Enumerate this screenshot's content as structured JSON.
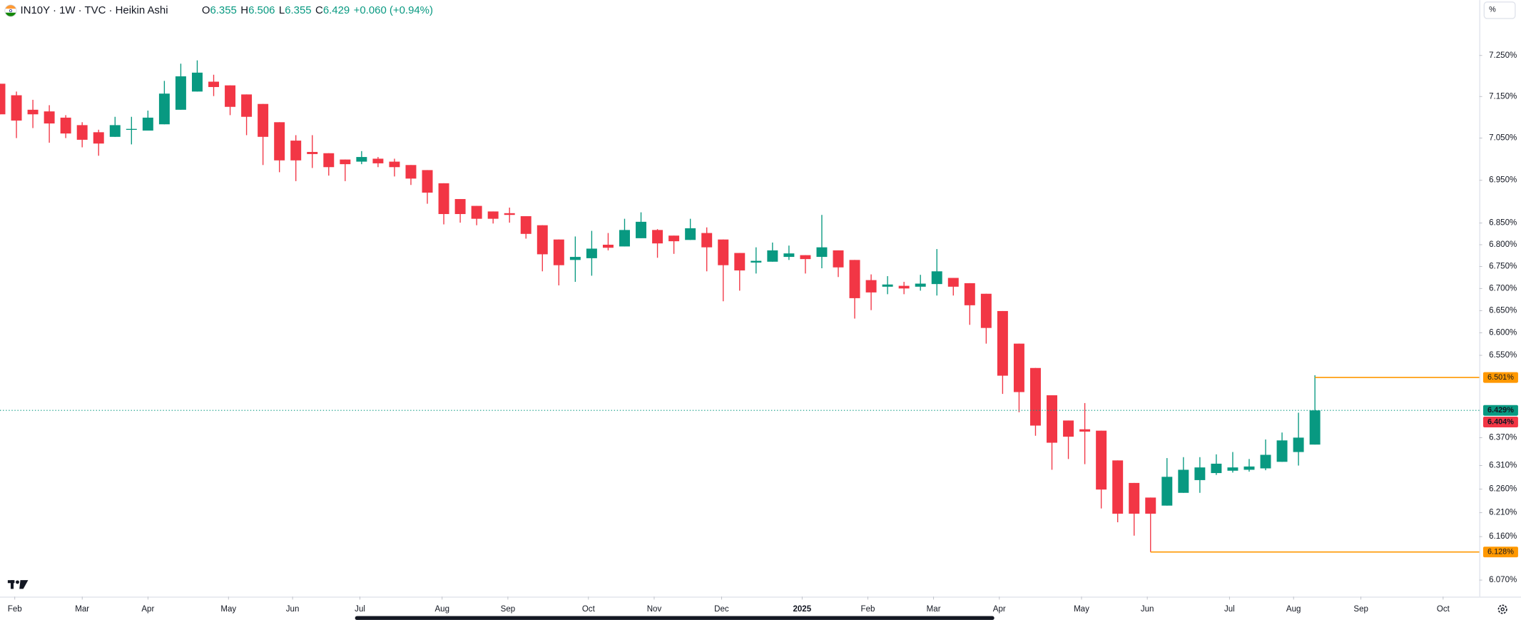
{
  "chart_data": {
    "type": "candlestick",
    "title": "IN10Y · 1W · TVC · Heikin Ashi",
    "legend_values": [
      {
        "label": "O",
        "value": "6.355"
      },
      {
        "label": "H",
        "value": "6.506"
      },
      {
        "label": "L",
        "value": "6.355"
      },
      {
        "label": "C",
        "value": "6.429"
      }
    ],
    "change": "+0.060 (+0.94%)",
    "scale_button": "%",
    "up_color": "#089981",
    "down_color": "#f23645",
    "log_scale": true,
    "open": [
      7.181,
      7.153,
      7.118,
      7.114,
      7.099,
      7.081,
      7.064,
      7.053,
      7.07,
      7.068,
      7.083,
      7.118,
      7.162,
      7.186,
      7.177,
      7.155,
      7.132,
      7.088,
      7.044,
      7.017,
      7.014,
      6.999,
      6.994,
      7.001,
      6.994,
      6.986,
      6.974,
      6.943,
      6.906,
      6.89,
      6.877,
      6.873,
      6.866,
      6.845,
      6.812,
      6.765,
      6.769,
      6.8,
      6.796,
      6.815,
      6.834,
      6.821,
      6.811,
      6.827,
      6.812,
      6.781,
      6.759,
      6.761,
      6.772,
      6.776,
      6.772,
      6.787,
      6.765,
      6.719,
      6.704,
      6.706,
      6.704,
      6.71,
      6.724,
      6.712,
      6.688,
      6.649,
      6.576,
      6.522,
      6.462,
      6.407,
      6.388,
      6.385,
      6.321,
      6.273,
      6.242,
      6.225,
      6.252,
      6.279,
      6.294,
      6.299,
      6.301,
      6.304,
      6.318,
      6.339,
      6.355
    ],
    "high": [
      7.181,
      7.162,
      7.142,
      7.129,
      7.105,
      7.088,
      7.07,
      7.101,
      7.101,
      7.116,
      7.188,
      7.23,
      7.238,
      7.203,
      7.177,
      7.155,
      7.132,
      7.088,
      7.057,
      7.057,
      7.014,
      6.999,
      7.019,
      7.005,
      7.001,
      6.986,
      6.974,
      6.943,
      6.906,
      6.89,
      6.877,
      6.886,
      6.866,
      6.845,
      6.812,
      6.819,
      6.832,
      6.827,
      6.86,
      6.875,
      6.836,
      6.821,
      6.86,
      6.84,
      6.812,
      6.781,
      6.794,
      6.805,
      6.798,
      6.776,
      6.869,
      6.787,
      6.765,
      6.732,
      6.728,
      6.715,
      6.731,
      6.79,
      6.724,
      6.712,
      6.688,
      6.649,
      6.576,
      6.522,
      6.462,
      6.407,
      6.445,
      6.385,
      6.321,
      6.273,
      6.242,
      6.326,
      6.328,
      6.328,
      6.334,
      6.339,
      6.324,
      6.366,
      6.381,
      6.424,
      6.506
    ],
    "low": [
      7.107,
      7.05,
      7.074,
      7.039,
      7.05,
      7.028,
      7.008,
      7.053,
      7.035,
      7.068,
      7.083,
      7.118,
      7.162,
      7.151,
      7.105,
      7.057,
      6.986,
      6.969,
      6.948,
      6.979,
      6.961,
      6.948,
      6.988,
      6.981,
      6.959,
      6.939,
      6.895,
      6.847,
      6.851,
      6.845,
      6.849,
      6.851,
      6.814,
      6.739,
      6.707,
      6.715,
      6.729,
      6.787,
      6.796,
      6.815,
      6.77,
      6.779,
      6.811,
      6.739,
      6.671,
      6.695,
      6.734,
      6.761,
      6.765,
      6.734,
      6.746,
      6.726,
      6.632,
      6.651,
      6.687,
      6.687,
      6.695,
      6.684,
      6.684,
      6.618,
      6.576,
      6.465,
      6.425,
      6.374,
      6.301,
      6.324,
      6.313,
      6.219,
      6.19,
      6.162,
      6.128,
      6.225,
      6.252,
      6.252,
      6.29,
      6.295,
      6.297,
      6.3,
      6.318,
      6.31,
      6.355
    ],
    "close": [
      7.107,
      7.092,
      7.107,
      7.085,
      7.061,
      7.046,
      7.037,
      7.081,
      7.072,
      7.099,
      7.157,
      7.199,
      7.208,
      7.173,
      7.125,
      7.101,
      7.053,
      6.997,
      6.997,
      7.012,
      6.981,
      6.988,
      7.005,
      6.99,
      6.981,
      6.954,
      6.921,
      6.871,
      6.871,
      6.86,
      6.86,
      6.869,
      6.825,
      6.778,
      6.753,
      6.772,
      6.791,
      6.793,
      6.834,
      6.853,
      6.803,
      6.808,
      6.838,
      6.794,
      6.753,
      6.741,
      6.763,
      6.787,
      6.78,
      6.767,
      6.794,
      6.748,
      6.678,
      6.691,
      6.709,
      6.7,
      6.711,
      6.739,
      6.704,
      6.662,
      6.611,
      6.505,
      6.469,
      6.396,
      6.359,
      6.372,
      6.383,
      6.259,
      6.208,
      6.208,
      6.208,
      6.286,
      6.301,
      6.306,
      6.314,
      6.306,
      6.308,
      6.333,
      6.364,
      6.37,
      6.429
    ],
    "xlim": [
      0,
      90
    ],
    "xticks": [
      {
        "value": 0.9,
        "label": "Feb"
      },
      {
        "value": 5.0,
        "label": "Mar"
      },
      {
        "value": 9.0,
        "label": "Apr"
      },
      {
        "value": 13.9,
        "label": "May"
      },
      {
        "value": 17.8,
        "label": "Jun"
      },
      {
        "value": 21.9,
        "label": "Jul"
      },
      {
        "value": 26.9,
        "label": "Aug"
      },
      {
        "value": 30.9,
        "label": "Sep"
      },
      {
        "value": 35.8,
        "label": "Oct"
      },
      {
        "value": 39.8,
        "label": "Nov"
      },
      {
        "value": 43.9,
        "label": "Dec"
      },
      {
        "value": 48.8,
        "label": "2025"
      },
      {
        "value": 52.8,
        "label": "Feb"
      },
      {
        "value": 56.8,
        "label": "Mar"
      },
      {
        "value": 60.8,
        "label": "Apr"
      },
      {
        "value": 65.8,
        "label": "May"
      },
      {
        "value": 69.8,
        "label": "Jun"
      },
      {
        "value": 74.8,
        "label": "Jul"
      },
      {
        "value": 78.7,
        "label": "Aug"
      },
      {
        "value": 82.8,
        "label": "Sep"
      },
      {
        "value": 87.8,
        "label": "Oct"
      }
    ],
    "ylim": [
      6.036,
      7.339
    ],
    "yticks": [
      {
        "value": 7.25,
        "label": "7.250%"
      },
      {
        "value": 7.15,
        "label": "7.150%"
      },
      {
        "value": 7.05,
        "label": "7.050%"
      },
      {
        "value": 6.95,
        "label": "6.950%"
      },
      {
        "value": 6.85,
        "label": "6.850%"
      },
      {
        "value": 6.8,
        "label": "6.800%"
      },
      {
        "value": 6.75,
        "label": "6.750%"
      },
      {
        "value": 6.7,
        "label": "6.700%"
      },
      {
        "value": 6.65,
        "label": "6.650%"
      },
      {
        "value": 6.6,
        "label": "6.600%"
      },
      {
        "value": 6.55,
        "label": "6.550%"
      },
      {
        "value": 6.37,
        "label": "6.370%"
      },
      {
        "value": 6.31,
        "label": "6.310%"
      },
      {
        "value": 6.26,
        "label": "6.260%"
      },
      {
        "value": 6.21,
        "label": "6.210%"
      },
      {
        "value": 6.16,
        "label": "6.160%"
      },
      {
        "value": 6.07,
        "label": "6.070%"
      }
    ],
    "horizontal_lines": [
      {
        "value": 6.501,
        "label": "6.501%",
        "start": 80,
        "color": "#ff9800"
      },
      {
        "value": 6.128,
        "label": "6.128%",
        "start": 70,
        "color": "#ff9800"
      }
    ],
    "price_labels": [
      {
        "value": 6.429,
        "label": "6.429%",
        "color": "#089981",
        "dotted": true
      },
      {
        "value": 6.404,
        "label": "6.404%",
        "color": "#f23645",
        "dotted": false
      }
    ]
  }
}
